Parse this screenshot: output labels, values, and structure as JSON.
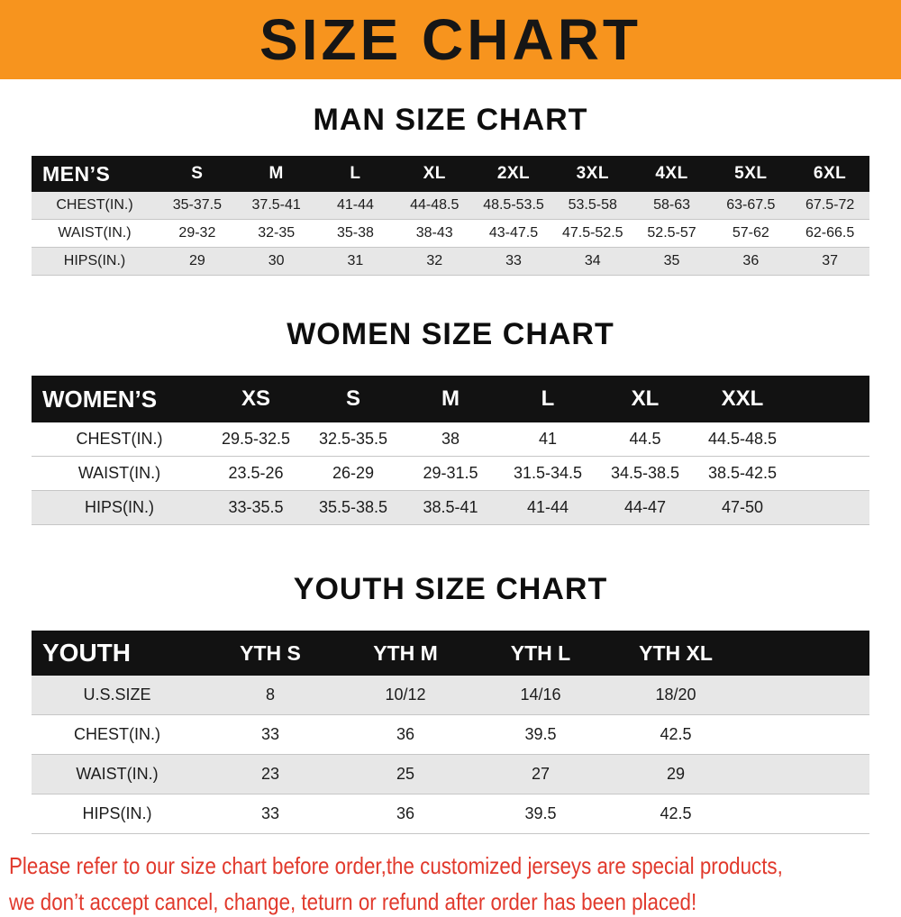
{
  "banner": {
    "title": "SIZE CHART",
    "bg_color": "#f7941e"
  },
  "man": {
    "heading": "MAN SIZE CHART",
    "header_label": "MEN’S",
    "sizes": [
      "S",
      "M",
      "L",
      "XL",
      "2XL",
      "3XL",
      "4XL",
      "5XL",
      "6XL"
    ],
    "rows": [
      {
        "label": "CHEST(IN.)",
        "values": [
          "35-37.5",
          "37.5-41",
          "41-44",
          "44-48.5",
          "48.5-53.5",
          "53.5-58",
          "58-63",
          "63-67.5",
          "67.5-72"
        ]
      },
      {
        "label": "WAIST(IN.)",
        "values": [
          "29-32",
          "32-35",
          "35-38",
          "38-43",
          "43-47.5",
          "47.5-52.5",
          "52.5-57",
          "57-62",
          "62-66.5"
        ]
      },
      {
        "label": "HIPS(IN.)",
        "values": [
          "29",
          "30",
          "31",
          "32",
          "33",
          "34",
          "35",
          "36",
          "37"
        ]
      }
    ]
  },
  "women": {
    "heading": "WOMEN SIZE CHART",
    "header_label": "WOMEN’S",
    "sizes": [
      "XS",
      "S",
      "M",
      "L",
      "XL",
      "XXL"
    ],
    "rows": [
      {
        "label": "CHEST(IN.)",
        "values": [
          "29.5-32.5",
          "32.5-35.5",
          "38",
          "41",
          "44.5",
          "44.5-48.5"
        ]
      },
      {
        "label": "WAIST(IN.)",
        "values": [
          "23.5-26",
          "26-29",
          "29-31.5",
          "31.5-34.5",
          "34.5-38.5",
          "38.5-42.5"
        ]
      },
      {
        "label": "HIPS(IN.)",
        "values": [
          "33-35.5",
          "35.5-38.5",
          "38.5-41",
          "41-44",
          "44-47",
          "47-50"
        ]
      }
    ]
  },
  "youth": {
    "heading": "YOUTH SIZE CHART",
    "header_label": "YOUTH",
    "sizes": [
      "YTH S",
      "YTH M",
      "YTH L",
      "YTH XL"
    ],
    "rows": [
      {
        "label": "U.S.SIZE",
        "values": [
          "8",
          "10/12",
          "14/16",
          "18/20"
        ]
      },
      {
        "label": "CHEST(IN.)",
        "values": [
          "33",
          "36",
          "39.5",
          "42.5"
        ]
      },
      {
        "label": "WAIST(IN.)",
        "values": [
          "23",
          "25",
          "27",
          "29"
        ]
      },
      {
        "label": "HIPS(IN.)",
        "values": [
          "33",
          "36",
          "39.5",
          "42.5"
        ]
      }
    ]
  },
  "footer": {
    "line1": "Please refer to our size chart before order,the customized jerseys are special products,",
    "line2": "we don’t accept cancel, change, teturn or refund after order has been placed!",
    "text_color": "#e1392c"
  }
}
